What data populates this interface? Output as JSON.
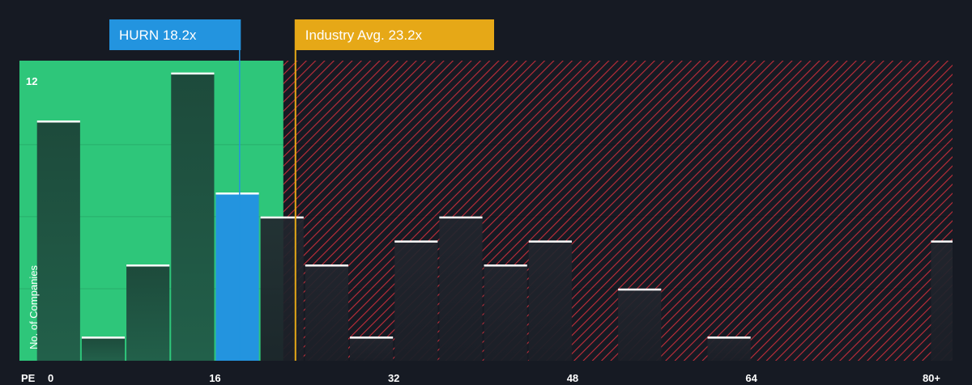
{
  "chart_data": {
    "type": "bar",
    "xlabel": "PE",
    "ylabel": "No. of Companies",
    "x_ticks": [
      "0",
      "16",
      "32",
      "48",
      "64",
      "80+"
    ],
    "x_tick_values": [
      0,
      16,
      32,
      48,
      64,
      80
    ],
    "y_ticks": [
      "12"
    ],
    "y_tick_values": [
      12
    ],
    "xlim": [
      -1.5,
      82
    ],
    "ylim": [
      0,
      12.5
    ],
    "bin_width": 4,
    "bins": [
      {
        "start": 0,
        "value": 10
      },
      {
        "start": 4,
        "value": 1
      },
      {
        "start": 8,
        "value": 4
      },
      {
        "start": 12,
        "value": 12
      },
      {
        "start": 16,
        "value": 7,
        "highlight": true
      },
      {
        "start": 20,
        "value": 6
      },
      {
        "start": 24,
        "value": 4
      },
      {
        "start": 28,
        "value": 1
      },
      {
        "start": 32,
        "value": 5
      },
      {
        "start": 36,
        "value": 6
      },
      {
        "start": 40,
        "value": 4
      },
      {
        "start": 44,
        "value": 5
      },
      {
        "start": 52,
        "value": 3
      },
      {
        "start": 60,
        "value": 1
      },
      {
        "start": 80,
        "value": 5
      }
    ],
    "company": {
      "label": "HURN 18.2x",
      "value": 18.2,
      "color": "#2394df"
    },
    "industry_avg": {
      "label": "Industry Avg. 23.2x",
      "value": 23.2,
      "color": "#e6a817"
    },
    "colors": {
      "background": "#161a23",
      "good_zone": "#2ec67a",
      "bad_zone_hatch": "#c22e3a",
      "bar": "#1e4a3a",
      "bar_dark": "#20252d",
      "bar_cap": "#ffffff",
      "gridline": "#3a3f48"
    }
  }
}
